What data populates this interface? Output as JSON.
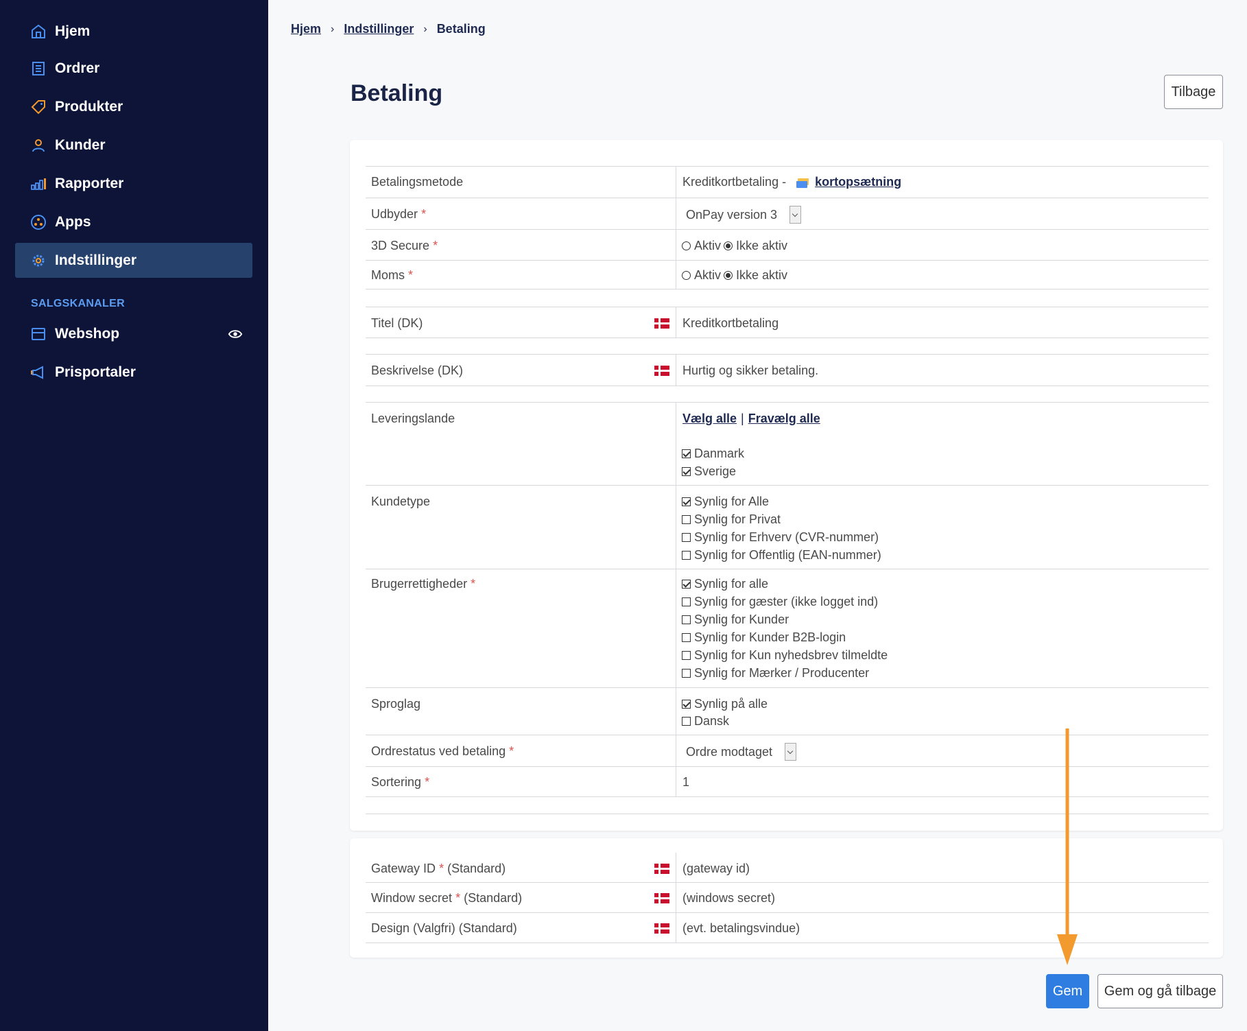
{
  "sidebar": {
    "items": [
      {
        "label": "Hjem",
        "icon": "home-icon"
      },
      {
        "label": "Ordrer",
        "icon": "orders-icon"
      },
      {
        "label": "Produkter",
        "icon": "tag-icon"
      },
      {
        "label": "Kunder",
        "icon": "user-icon"
      },
      {
        "label": "Rapporter",
        "icon": "bar-chart-icon"
      },
      {
        "label": "Apps",
        "icon": "apps-icon"
      },
      {
        "label": "Indstillinger",
        "icon": "gear-icon",
        "active": true
      }
    ],
    "section_label": "SALGSKANALER",
    "channels": [
      {
        "label": "Webshop",
        "icon": "store-icon"
      },
      {
        "label": "Prisportaler",
        "icon": "megaphone-icon"
      }
    ]
  },
  "breadcrumb": {
    "items": [
      "Hjem",
      "Indstillinger",
      "Betaling"
    ]
  },
  "page": {
    "title": "Betaling",
    "back_button": "Tilbage"
  },
  "form": {
    "payment_method": {
      "label": "Betalingsmetode",
      "value": "Kreditkortbetaling -",
      "link": "kortopsætning"
    },
    "provider": {
      "label": "Udbyder",
      "required": "*",
      "value": "OnPay version 3"
    },
    "secure3d": {
      "label": "3D Secure",
      "required": "*",
      "option_active": "Aktiv",
      "option_inactive": "Ikke aktiv",
      "selected": "Ikke aktiv"
    },
    "vat": {
      "label": "Moms",
      "required": "*",
      "option_active": "Aktiv",
      "option_inactive": "Ikke aktiv",
      "selected": "Ikke aktiv"
    },
    "title": {
      "label": "Titel (DK)",
      "value": "Kreditkortbetaling"
    },
    "description": {
      "label": "Beskrivelse (DK)",
      "value": "Hurtig og sikker betaling."
    },
    "delivery_countries": {
      "label": "Leveringslande",
      "select_all": "Vælg alle",
      "separator": "|",
      "deselect_all": "Fravælg alle",
      "options": [
        {
          "label": "Danmark",
          "checked": true
        },
        {
          "label": "Sverige",
          "checked": true
        }
      ]
    },
    "customer_type": {
      "label": "Kundetype",
      "options": [
        {
          "label": "Synlig for Alle",
          "checked": true
        },
        {
          "label": "Synlig for Privat",
          "checked": false
        },
        {
          "label": "Synlig for Erhverv (CVR-nummer)",
          "checked": false
        },
        {
          "label": "Synlig for Offentlig (EAN-nummer)",
          "checked": false
        }
      ]
    },
    "user_rights": {
      "label": "Brugerrettigheder",
      "required": "*",
      "options": [
        {
          "label": "Synlig for alle",
          "checked": true
        },
        {
          "label": "Synlig for gæster (ikke logget ind)",
          "checked": false
        },
        {
          "label": "Synlig for Kunder",
          "checked": false
        },
        {
          "label": "Synlig for Kunder B2B-login",
          "checked": false
        },
        {
          "label": "Synlig for Kun nyhedsbrev tilmeldte",
          "checked": false
        },
        {
          "label": "Synlig for Mærker / Producenter",
          "checked": false
        }
      ]
    },
    "language": {
      "label": "Sproglag",
      "options": [
        {
          "label": "Synlig på alle",
          "checked": true
        },
        {
          "label": "Dansk",
          "checked": false
        }
      ]
    },
    "order_status": {
      "label": "Ordrestatus ved betaling",
      "required": "*",
      "value": "Ordre modtaget"
    },
    "sorting": {
      "label": "Sortering",
      "required": "*",
      "value": "1"
    }
  },
  "gateway": {
    "gateway_id": {
      "label": "Gateway ID",
      "required": "*",
      "suffix": "(Standard)",
      "value": "(gateway id)"
    },
    "window_secret": {
      "label": "Window secret",
      "required": "*",
      "suffix": "(Standard)",
      "value": "(windows secret)"
    },
    "design": {
      "label": "Design (Valgfri) (Standard)",
      "value": "(evt. betalingsvindue)"
    }
  },
  "actions": {
    "save": "Gem",
    "save_back": "Gem og gå tilbage"
  },
  "colors": {
    "sidebar_bg": "#0e1438",
    "active_bg": "#26416b",
    "accent": "#2f7de1",
    "arrow": "#f29a2e",
    "required": "#d9534f"
  }
}
